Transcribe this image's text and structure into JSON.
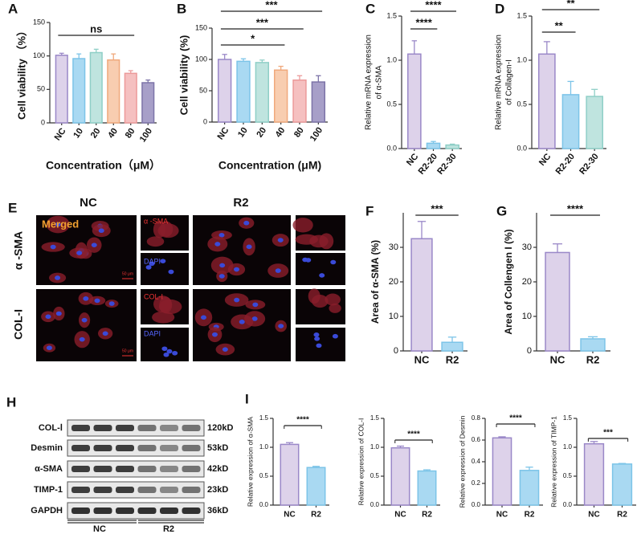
{
  "chart_data": [
    {
      "type": "bar",
      "panel": "A",
      "ylabel": [
        "Cell viability （%）"
      ],
      "xlabel": "Concentration（μM）",
      "categories": [
        "NC",
        "10",
        "20",
        "40",
        "80",
        "100"
      ],
      "values": [
        101,
        96,
        105,
        94,
        74,
        60
      ],
      "errors": [
        3,
        7,
        5,
        9,
        4,
        4
      ],
      "colors": [
        "#ddd2ea",
        "#a9d9f2",
        "#bfe4df",
        "#f8cdb0",
        "#f5c0c0",
        "#a79fc8"
      ],
      "edge_colors": [
        "#9a88c8",
        "#7cc4e8",
        "#8fcfc7",
        "#f0a97c",
        "#ec9a9a",
        "#7d74a8"
      ],
      "ylim": [
        0,
        150
      ],
      "yticks": [
        0,
        50,
        100,
        150
      ],
      "annotations": [
        "ns"
      ]
    },
    {
      "type": "bar",
      "panel": "B",
      "ylabel": [
        "Cell viability (%)"
      ],
      "xlabel": "Concentration (μM)",
      "categories": [
        "NC",
        "10",
        "20",
        "40",
        "80",
        "100"
      ],
      "values": [
        100,
        97,
        95,
        83,
        67,
        64
      ],
      "errors": [
        8,
        4,
        4,
        6,
        7,
        10
      ],
      "colors": [
        "#ddd2ea",
        "#a9d9f2",
        "#bfe4df",
        "#f8cdb0",
        "#f5c0c0",
        "#a79fc8"
      ],
      "edge_colors": [
        "#9a88c8",
        "#7cc4e8",
        "#8fcfc7",
        "#f0a97c",
        "#ec9a9a",
        "#7d74a8"
      ],
      "ylim": [
        0,
        150
      ],
      "yticks": [
        0,
        50,
        100,
        150
      ],
      "annotations": [
        "***",
        "***",
        "*"
      ]
    },
    {
      "type": "bar",
      "panel": "C",
      "ylabel": [
        "Relative mRNA expression",
        "of α-SMA"
      ],
      "categories": [
        "NC",
        "R2-20",
        "R2-30"
      ],
      "values": [
        1.07,
        0.06,
        0.04
      ],
      "errors": [
        0.15,
        0.02,
        0.01
      ],
      "colors": [
        "#ddd2ea",
        "#a9d9f2",
        "#bfe4df"
      ],
      "edge_colors": [
        "#9a88c8",
        "#7cc4e8",
        "#8fcfc7"
      ],
      "ylim": [
        0,
        1.5
      ],
      "yticks": [
        {
          "value": 0,
          "label": "0.0"
        },
        0.5,
        {
          "value": 1,
          "label": "1.0"
        },
        1.5
      ],
      "annotations": [
        "****",
        "****"
      ]
    },
    {
      "type": "bar",
      "panel": "D",
      "ylabel": [
        "Relative mRNA expression",
        "of Collagen-I"
      ],
      "categories": [
        "NC",
        "R2-20",
        "R2-30"
      ],
      "values": [
        1.07,
        0.61,
        0.59
      ],
      "errors": [
        0.14,
        0.15,
        0.08
      ],
      "colors": [
        "#ddd2ea",
        "#a9d9f2",
        "#bfe4df"
      ],
      "edge_colors": [
        "#9a88c8",
        "#7cc4e8",
        "#8fcfc7"
      ],
      "ylim": [
        0,
        1.5
      ],
      "yticks": [
        {
          "value": 0,
          "label": "0.0"
        },
        0.5,
        {
          "value": 1,
          "label": "1.0"
        },
        1.5
      ],
      "annotations": [
        "**",
        "**"
      ]
    },
    {
      "type": "bar",
      "panel": "F",
      "ylabel": [
        "Area of α-SMA (%)"
      ],
      "categories": [
        "NC",
        "R2"
      ],
      "values": [
        32.5,
        2.5
      ],
      "errors": [
        5,
        1.5
      ],
      "colors": [
        "#ddd2ea",
        "#a9d9f2"
      ],
      "edge_colors": [
        "#9a88c8",
        "#7cc4e8"
      ],
      "ylim": [
        0,
        40
      ],
      "yticks": [
        0,
        10,
        20,
        30
      ],
      "annotations": [
        "***"
      ]
    },
    {
      "type": "bar",
      "panel": "G",
      "ylabel": [
        "Area of Collengen I (%)"
      ],
      "categories": [
        "NC",
        "R2"
      ],
      "values": [
        28.5,
        3.5
      ],
      "errors": [
        2.5,
        0.6
      ],
      "colors": [
        "#ddd2ea",
        "#a9d9f2"
      ],
      "edge_colors": [
        "#9a88c8",
        "#7cc4e8"
      ],
      "ylim": [
        0,
        40
      ],
      "yticks": [
        0,
        10,
        20,
        30
      ],
      "annotations": [
        "****"
      ]
    },
    {
      "type": "bar",
      "panel": "I",
      "ylabel": [
        "Relative expression of α-SMA"
      ],
      "categories": [
        "NC",
        "R2"
      ],
      "values": [
        1.05,
        0.65
      ],
      "errors": [
        0.03,
        0.02
      ],
      "colors": [
        "#ddd2ea",
        "#a9d9f2"
      ],
      "edge_colors": [
        "#9a88c8",
        "#7cc4e8"
      ],
      "ylim": [
        0,
        1.5
      ],
      "yticks": [
        {
          "value": 0,
          "label": "0.0"
        },
        0.5,
        {
          "value": 1,
          "label": "1.0"
        },
        1.5
      ],
      "annotations": [
        "****"
      ]
    },
    {
      "type": "bar",
      "ylabel": [
        "Relative expression of COL-I"
      ],
      "categories": [
        "NC",
        "R2"
      ],
      "values": [
        0.99,
        0.59
      ],
      "errors": [
        0.03,
        0.02
      ],
      "colors": [
        "#ddd2ea",
        "#a9d9f2"
      ],
      "edge_colors": [
        "#9a88c8",
        "#7cc4e8"
      ],
      "ylim": [
        0,
        1.5
      ],
      "yticks": [
        {
          "value": 0,
          "label": "0.0"
        },
        0.5,
        {
          "value": 1,
          "label": "1.0"
        },
        1.5
      ],
      "annotations": [
        "****"
      ]
    },
    {
      "type": "bar",
      "ylabel": [
        "Relative expression of Desmin"
      ],
      "categories": [
        "NC",
        "R2"
      ],
      "values": [
        0.62,
        0.32
      ],
      "errors": [
        0.01,
        0.03
      ],
      "colors": [
        "#ddd2ea",
        "#a9d9f2"
      ],
      "edge_colors": [
        "#9a88c8",
        "#7cc4e8"
      ],
      "ylim": [
        0,
        0.8
      ],
      "yticks": [
        {
          "value": 0,
          "label": "0.0"
        },
        0.2,
        0.4,
        0.6,
        0.8
      ],
      "annotations": [
        "****"
      ]
    },
    {
      "type": "bar",
      "ylabel": [
        "Relative expression of TIMP-1"
      ],
      "categories": [
        "NC",
        "R2"
      ],
      "values": [
        1.06,
        0.71
      ],
      "errors": [
        0.04,
        0.01
      ],
      "colors": [
        "#ddd2ea",
        "#a9d9f2"
      ],
      "edge_colors": [
        "#9a88c8",
        "#7cc4e8"
      ],
      "ylim": [
        0,
        1.5
      ],
      "yticks": [
        {
          "value": 0,
          "label": "0.0"
        },
        0.5,
        {
          "value": 1,
          "label": "1.0"
        },
        1.5
      ],
      "annotations": [
        "***"
      ]
    }
  ],
  "micrographs": {
    "panel": "E",
    "groups": [
      "NC",
      "R2"
    ],
    "rows": [
      "α -SMA",
      "COL-I"
    ],
    "merged": "Merged",
    "channels": [
      [
        "α -SMA",
        "DAPI"
      ],
      [
        "COL-I",
        "DAPI"
      ]
    ],
    "scale_bars": [
      "50 μm",
      "50 μm"
    ]
  },
  "blot": {
    "panel": "H",
    "proteins": [
      "COL-Ⅰ",
      "Desmin",
      "α-SMA",
      "TIMP-1",
      "GAPDH"
    ],
    "sizes": [
      "120kD",
      "53kD",
      "42kD",
      "23kD",
      "36kD"
    ],
    "groups": [
      "NC",
      "R2"
    ]
  }
}
